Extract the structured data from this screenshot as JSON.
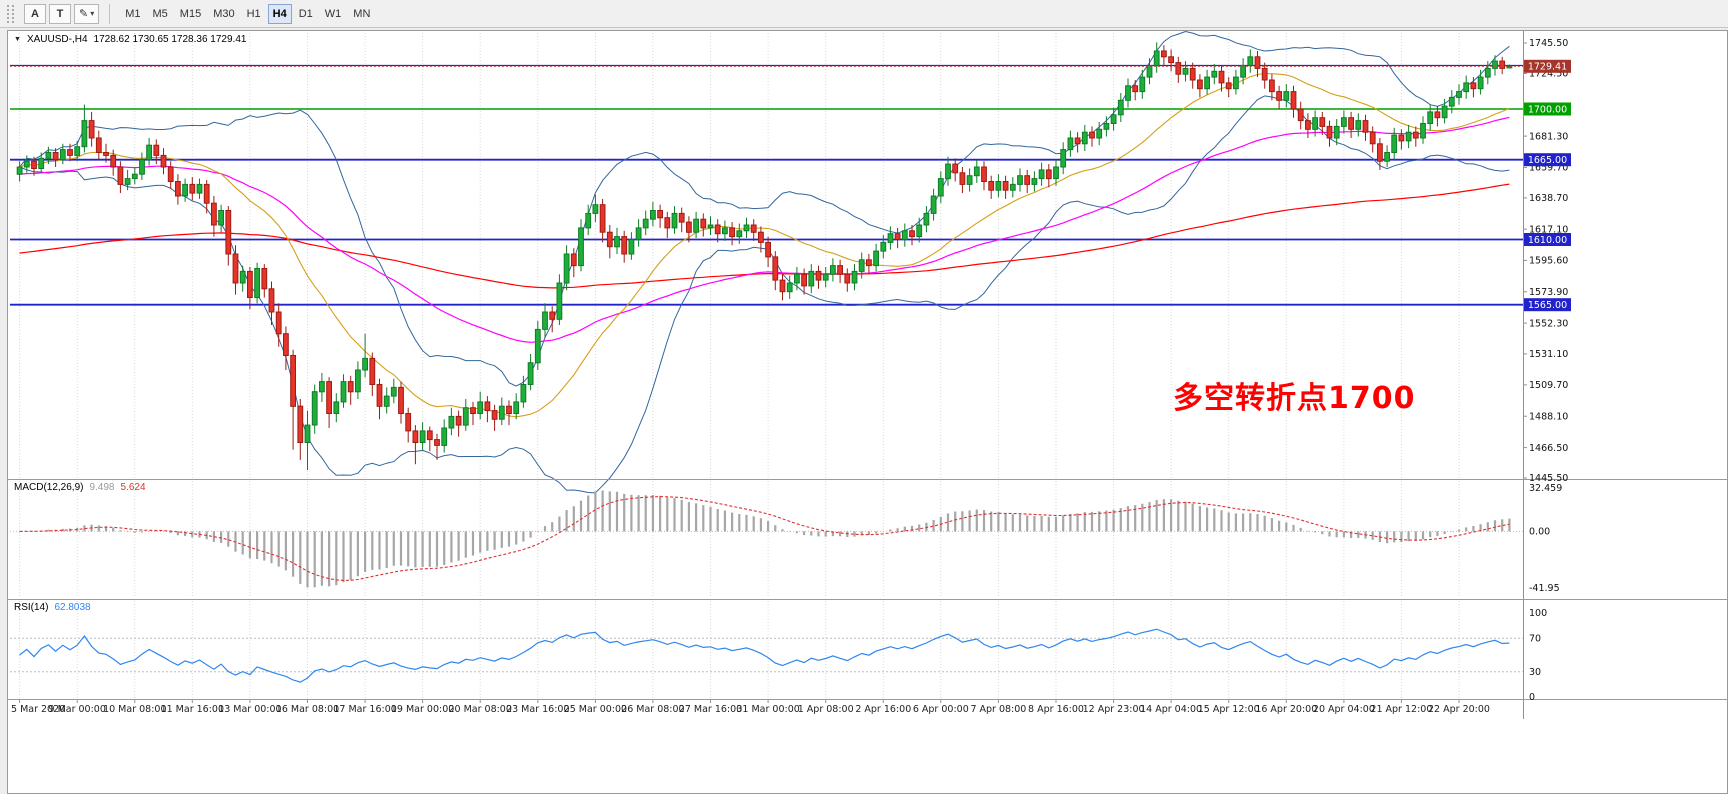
{
  "toolbar": {
    "tools": [
      {
        "id": "text-tool",
        "label": "A"
      },
      {
        "id": "label-tool",
        "label": "T"
      }
    ],
    "icons": {
      "pencil": "✎",
      "caret": "▾",
      "collapse": "▼"
    },
    "periods": [
      "M1",
      "M5",
      "M15",
      "M30",
      "H1",
      "H4",
      "D1",
      "W1",
      "MN"
    ],
    "active_period": "H4"
  },
  "header": {
    "icon": "▼",
    "symbol": "XAUUSD-,H4",
    "ohlc": "1728.62 1730.65 1728.36 1729.41"
  },
  "macd": {
    "label": "MACD(12,26,9)",
    "value_main": "9.498",
    "value_signal": "5.624",
    "ticks": [
      {
        "v": 32.459,
        "label": "32.459"
      },
      {
        "v": 0,
        "label": "0.00"
      },
      {
        "v": -41.95,
        "label": "-41.95"
      }
    ]
  },
  "rsi": {
    "label": "RSI(14)",
    "value": "62.8038",
    "levels": [
      70,
      30
    ],
    "ticks": [
      {
        "v": 100,
        "label": "100"
      },
      {
        "v": 70,
        "label": "70"
      },
      {
        "v": 30,
        "label": "30"
      },
      {
        "v": 0,
        "label": "0"
      }
    ]
  },
  "annotation": {
    "text": "多空转折点1700",
    "color": "#FF0000"
  },
  "chart_data": {
    "type": "candlestick",
    "symbol": "XAUUSD-",
    "timeframe": "H4",
    "ohlc_current": {
      "open": 1728.62,
      "high": 1730.65,
      "low": 1728.36,
      "close": 1729.41
    },
    "ylim": [
      1445.5,
      1745.5
    ],
    "bars_per_label": 8,
    "colors": {
      "up": "#1FAE3C",
      "up_border": "#0E7D26",
      "down": "#E5352B",
      "down_border": "#9E1B12",
      "bollinger": "#31659C",
      "ma_fast": "#D4A017",
      "ma_medium": "#FF00FF",
      "ma_slow": "#FF0000",
      "grid": "#D9D9D9",
      "macd_hist": "#A6A6A6",
      "macd_signal": "#E03030",
      "rsi_line": "#2E86F0",
      "level_green": "#00A000",
      "level_blue": "#2222CC",
      "bid": "#C0392B"
    },
    "hlines": [
      {
        "price": 1730.0,
        "color": "#2222CC",
        "width": 1.3
      },
      {
        "price": 1700.0,
        "color": "#00A000",
        "width": 1.6,
        "label": "1700.00",
        "tag": "#00A000"
      },
      {
        "price": 1665.0,
        "color": "#2222CC",
        "width": 1.8,
        "label": "1665.00",
        "tag": "#2222CC"
      },
      {
        "price": 1610.0,
        "color": "#2222CC",
        "width": 1.8,
        "label": "1610.00",
        "tag": "#2222CC"
      },
      {
        "price": 1565.0,
        "color": "#2222CC",
        "width": 1.8,
        "label": "1565.00",
        "tag": "#2222CC"
      }
    ],
    "current_price": {
      "value": 1729.41,
      "label": "1729.41",
      "tag": "#A3352A"
    },
    "price_ticks": [
      {
        "v": 1745.5,
        "label": "1745.50"
      },
      {
        "v": 1724.5,
        "label": "1724.50"
      },
      {
        "v": 1681.3,
        "label": "1681.30"
      },
      {
        "v": 1659.7,
        "label": "1659.70"
      },
      {
        "v": 1638.7,
        "label": "1638.70"
      },
      {
        "v": 1617.1,
        "label": "1617.10"
      },
      {
        "v": 1595.6,
        "label": "1595.60"
      },
      {
        "v": 1573.9,
        "label": "1573.90"
      },
      {
        "v": 1552.3,
        "label": "1552.30"
      },
      {
        "v": 1531.1,
        "label": "1531.10"
      },
      {
        "v": 1509.7,
        "label": "1509.70"
      },
      {
        "v": 1488.1,
        "label": "1488.10"
      },
      {
        "v": 1466.5,
        "label": "1466.50"
      },
      {
        "v": 1445.5,
        "label": "1445.50"
      }
    ],
    "time_labels": [
      "5 Mar 2020",
      "9 Mar 00:00",
      "10 Mar 08:00",
      "11 Mar 16:00",
      "13 Mar 00:00",
      "16 Mar 08:00",
      "17 Mar 16:00",
      "19 Mar 00:00",
      "20 Mar 08:00",
      "23 Mar 16:00",
      "25 Mar 00:00",
      "26 Mar 08:00",
      "27 Mar 16:00",
      "31 Mar 00:00",
      "1 Apr 08:00",
      "2 Apr 16:00",
      "6 Apr 00:00",
      "7 Apr 08:00",
      "8 Apr 16:00",
      "12 Apr 23:00",
      "14 Apr 04:00",
      "15 Apr 12:00",
      "16 Apr 20:00",
      "20 Apr 04:00",
      "21 Apr 12:00",
      "22 Apr 20:00"
    ],
    "candles": [
      [
        1655,
        1664,
        1650,
        1660
      ],
      [
        1660,
        1668,
        1656,
        1664
      ],
      [
        1664,
        1667,
        1654,
        1659
      ],
      [
        1659,
        1670,
        1656,
        1666
      ],
      [
        1666,
        1674,
        1662,
        1670
      ],
      [
        1670,
        1673,
        1660,
        1665
      ],
      [
        1665,
        1676,
        1662,
        1672
      ],
      [
        1672,
        1676,
        1664,
        1668
      ],
      [
        1668,
        1678,
        1664,
        1674
      ],
      [
        1674,
        1703,
        1670,
        1692
      ],
      [
        1692,
        1698,
        1674,
        1680
      ],
      [
        1680,
        1685,
        1665,
        1670
      ],
      [
        1670,
        1676,
        1663,
        1668
      ],
      [
        1668,
        1672,
        1654,
        1660
      ],
      [
        1660,
        1664,
        1642,
        1648
      ],
      [
        1648,
        1658,
        1644,
        1652
      ],
      [
        1652,
        1660,
        1648,
        1655
      ],
      [
        1655,
        1670,
        1651,
        1665
      ],
      [
        1665,
        1680,
        1661,
        1675
      ],
      [
        1675,
        1679,
        1662,
        1668
      ],
      [
        1668,
        1673,
        1655,
        1660
      ],
      [
        1660,
        1664,
        1645,
        1650
      ],
      [
        1650,
        1655,
        1634,
        1640
      ],
      [
        1640,
        1652,
        1636,
        1648
      ],
      [
        1648,
        1653,
        1637,
        1642
      ],
      [
        1642,
        1652,
        1638,
        1648
      ],
      [
        1648,
        1651,
        1628,
        1635
      ],
      [
        1635,
        1640,
        1612,
        1620
      ],
      [
        1620,
        1634,
        1615,
        1630
      ],
      [
        1630,
        1633,
        1592,
        1600
      ],
      [
        1600,
        1606,
        1572,
        1580
      ],
      [
        1580,
        1592,
        1574,
        1588
      ],
      [
        1588,
        1591,
        1562,
        1570
      ],
      [
        1570,
        1594,
        1566,
        1590
      ],
      [
        1590,
        1593,
        1570,
        1576
      ],
      [
        1576,
        1581,
        1551,
        1560
      ],
      [
        1560,
        1566,
        1536,
        1545
      ],
      [
        1545,
        1550,
        1520,
        1530
      ],
      [
        1530,
        1534,
        1465,
        1495
      ],
      [
        1495,
        1500,
        1458,
        1470
      ],
      [
        1470,
        1492,
        1451,
        1482
      ],
      [
        1482,
        1510,
        1476,
        1505
      ],
      [
        1505,
        1518,
        1498,
        1512
      ],
      [
        1512,
        1515,
        1480,
        1490
      ],
      [
        1490,
        1504,
        1484,
        1498
      ],
      [
        1498,
        1517,
        1494,
        1512
      ],
      [
        1512,
        1516,
        1496,
        1505
      ],
      [
        1505,
        1526,
        1500,
        1520
      ],
      [
        1520,
        1545,
        1515,
        1528
      ],
      [
        1528,
        1532,
        1502,
        1510
      ],
      [
        1510,
        1514,
        1486,
        1495
      ],
      [
        1495,
        1508,
        1490,
        1502
      ],
      [
        1502,
        1514,
        1497,
        1508
      ],
      [
        1508,
        1512,
        1483,
        1490
      ],
      [
        1490,
        1494,
        1470,
        1478
      ],
      [
        1478,
        1482,
        1455,
        1470
      ],
      [
        1470,
        1484,
        1464,
        1478
      ],
      [
        1478,
        1481,
        1464,
        1472
      ],
      [
        1472,
        1476,
        1458,
        1468
      ],
      [
        1468,
        1486,
        1463,
        1480
      ],
      [
        1480,
        1494,
        1475,
        1488
      ],
      [
        1488,
        1492,
        1474,
        1482
      ],
      [
        1482,
        1500,
        1478,
        1494
      ],
      [
        1494,
        1498,
        1482,
        1490
      ],
      [
        1490,
        1505,
        1486,
        1498
      ],
      [
        1498,
        1502,
        1484,
        1492
      ],
      [
        1492,
        1496,
        1478,
        1486
      ],
      [
        1486,
        1501,
        1482,
        1495
      ],
      [
        1495,
        1499,
        1482,
        1490
      ],
      [
        1490,
        1504,
        1486,
        1498
      ],
      [
        1498,
        1516,
        1494,
        1510
      ],
      [
        1510,
        1531,
        1506,
        1525
      ],
      [
        1525,
        1554,
        1520,
        1548
      ],
      [
        1548,
        1566,
        1542,
        1560
      ],
      [
        1560,
        1564,
        1546,
        1555
      ],
      [
        1555,
        1586,
        1551,
        1580
      ],
      [
        1580,
        1606,
        1575,
        1600
      ],
      [
        1600,
        1604,
        1584,
        1592
      ],
      [
        1592,
        1624,
        1588,
        1618
      ],
      [
        1618,
        1634,
        1613,
        1628
      ],
      [
        1628,
        1641,
        1622,
        1634
      ],
      [
        1634,
        1638,
        1608,
        1615
      ],
      [
        1615,
        1620,
        1597,
        1605
      ],
      [
        1605,
        1618,
        1600,
        1612
      ],
      [
        1612,
        1616,
        1594,
        1600
      ],
      [
        1600,
        1615,
        1596,
        1610
      ],
      [
        1610,
        1624,
        1605,
        1618
      ],
      [
        1618,
        1630,
        1613,
        1624
      ],
      [
        1624,
        1636,
        1619,
        1630
      ],
      [
        1630,
        1634,
        1618,
        1625
      ],
      [
        1625,
        1629,
        1611,
        1618
      ],
      [
        1618,
        1633,
        1614,
        1628
      ],
      [
        1628,
        1632,
        1615,
        1622
      ],
      [
        1622,
        1626,
        1608,
        1615
      ],
      [
        1615,
        1629,
        1611,
        1624
      ],
      [
        1624,
        1628,
        1612,
        1618
      ],
      [
        1618,
        1626,
        1613,
        1620
      ],
      [
        1620,
        1624,
        1608,
        1614
      ],
      [
        1614,
        1623,
        1609,
        1618
      ],
      [
        1618,
        1622,
        1606,
        1612
      ],
      [
        1612,
        1621,
        1607,
        1616
      ],
      [
        1616,
        1625,
        1611,
        1620
      ],
      [
        1620,
        1624,
        1609,
        1615
      ],
      [
        1615,
        1619,
        1601,
        1608
      ],
      [
        1608,
        1612,
        1591,
        1598
      ],
      [
        1598,
        1602,
        1575,
        1582
      ],
      [
        1582,
        1586,
        1568,
        1574
      ],
      [
        1574,
        1585,
        1569,
        1580
      ],
      [
        1580,
        1591,
        1575,
        1586
      ],
      [
        1586,
        1590,
        1572,
        1578
      ],
      [
        1578,
        1593,
        1573,
        1588
      ],
      [
        1588,
        1592,
        1576,
        1582
      ],
      [
        1582,
        1591,
        1577,
        1586
      ],
      [
        1586,
        1597,
        1581,
        1592
      ],
      [
        1592,
        1596,
        1580,
        1586
      ],
      [
        1586,
        1590,
        1574,
        1580
      ],
      [
        1580,
        1593,
        1575,
        1588
      ],
      [
        1588,
        1601,
        1583,
        1596
      ],
      [
        1596,
        1600,
        1586,
        1592
      ],
      [
        1592,
        1607,
        1588,
        1602
      ],
      [
        1602,
        1613,
        1597,
        1608
      ],
      [
        1608,
        1619,
        1603,
        1614
      ],
      [
        1614,
        1618,
        1604,
        1610
      ],
      [
        1610,
        1621,
        1605,
        1616
      ],
      [
        1616,
        1620,
        1606,
        1612
      ],
      [
        1612,
        1625,
        1608,
        1620
      ],
      [
        1620,
        1633,
        1615,
        1628
      ],
      [
        1628,
        1645,
        1623,
        1640
      ],
      [
        1640,
        1657,
        1635,
        1652
      ],
      [
        1652,
        1667,
        1647,
        1662
      ],
      [
        1662,
        1666,
        1650,
        1656
      ],
      [
        1656,
        1660,
        1642,
        1648
      ],
      [
        1648,
        1659,
        1643,
        1654
      ],
      [
        1654,
        1665,
        1649,
        1660
      ],
      [
        1660,
        1664,
        1644,
        1650
      ],
      [
        1650,
        1654,
        1638,
        1644
      ],
      [
        1644,
        1655,
        1639,
        1650
      ],
      [
        1650,
        1654,
        1638,
        1644
      ],
      [
        1644,
        1653,
        1639,
        1648
      ],
      [
        1648,
        1659,
        1643,
        1654
      ],
      [
        1654,
        1658,
        1642,
        1648
      ],
      [
        1648,
        1657,
        1643,
        1652
      ],
      [
        1652,
        1663,
        1647,
        1658
      ],
      [
        1658,
        1662,
        1646,
        1652
      ],
      [
        1652,
        1665,
        1647,
        1660
      ],
      [
        1660,
        1677,
        1655,
        1672
      ],
      [
        1672,
        1685,
        1667,
        1680
      ],
      [
        1680,
        1684,
        1670,
        1676
      ],
      [
        1676,
        1689,
        1671,
        1684
      ],
      [
        1684,
        1688,
        1674,
        1680
      ],
      [
        1680,
        1691,
        1675,
        1686
      ],
      [
        1686,
        1695,
        1681,
        1690
      ],
      [
        1690,
        1701,
        1685,
        1696
      ],
      [
        1696,
        1711,
        1691,
        1706
      ],
      [
        1706,
        1721,
        1701,
        1716
      ],
      [
        1716,
        1720,
        1706,
        1712
      ],
      [
        1712,
        1727,
        1707,
        1722
      ],
      [
        1722,
        1735,
        1717,
        1730
      ],
      [
        1730,
        1746,
        1725,
        1740
      ],
      [
        1740,
        1744,
        1730,
        1736
      ],
      [
        1736,
        1741,
        1726,
        1732
      ],
      [
        1732,
        1736,
        1718,
        1724
      ],
      [
        1724,
        1733,
        1719,
        1728
      ],
      [
        1728,
        1732,
        1714,
        1720
      ],
      [
        1720,
        1724,
        1708,
        1714
      ],
      [
        1714,
        1727,
        1710,
        1722
      ],
      [
        1722,
        1731,
        1717,
        1726
      ],
      [
        1726,
        1730,
        1712,
        1718
      ],
      [
        1718,
        1722,
        1708,
        1714
      ],
      [
        1714,
        1727,
        1710,
        1722
      ],
      [
        1722,
        1735,
        1717,
        1730
      ],
      [
        1730,
        1741,
        1725,
        1736
      ],
      [
        1736,
        1740,
        1722,
        1728
      ],
      [
        1728,
        1732,
        1714,
        1720
      ],
      [
        1720,
        1724,
        1706,
        1712
      ],
      [
        1712,
        1716,
        1700,
        1706
      ],
      [
        1706,
        1717,
        1701,
        1712
      ],
      [
        1712,
        1716,
        1694,
        1700
      ],
      [
        1700,
        1705,
        1686,
        1692
      ],
      [
        1692,
        1697,
        1680,
        1686
      ],
      [
        1686,
        1699,
        1681,
        1694
      ],
      [
        1694,
        1698,
        1682,
        1688
      ],
      [
        1688,
        1692,
        1674,
        1680
      ],
      [
        1680,
        1693,
        1675,
        1688
      ],
      [
        1688,
        1699,
        1683,
        1694
      ],
      [
        1694,
        1698,
        1680,
        1686
      ],
      [
        1686,
        1697,
        1681,
        1692
      ],
      [
        1692,
        1696,
        1678,
        1684
      ],
      [
        1684,
        1688,
        1670,
        1676
      ],
      [
        1676,
        1680,
        1658,
        1664
      ],
      [
        1664,
        1675,
        1660,
        1670
      ],
      [
        1670,
        1687,
        1665,
        1682
      ],
      [
        1682,
        1686,
        1672,
        1678
      ],
      [
        1678,
        1689,
        1673,
        1684
      ],
      [
        1684,
        1688,
        1674,
        1680
      ],
      [
        1680,
        1695,
        1676,
        1690
      ],
      [
        1690,
        1703,
        1685,
        1698
      ],
      [
        1698,
        1702,
        1688,
        1694
      ],
      [
        1694,
        1707,
        1690,
        1702
      ],
      [
        1702,
        1713,
        1697,
        1708
      ],
      [
        1708,
        1717,
        1703,
        1712
      ],
      [
        1712,
        1723,
        1707,
        1718
      ],
      [
        1718,
        1722,
        1708,
        1714
      ],
      [
        1714,
        1727,
        1710,
        1722
      ],
      [
        1722,
        1733,
        1717,
        1728
      ],
      [
        1728,
        1737,
        1723,
        1733
      ],
      [
        1733,
        1736,
        1724,
        1728
      ],
      [
        1728.62,
        1730.65,
        1728.36,
        1729.41
      ]
    ]
  }
}
